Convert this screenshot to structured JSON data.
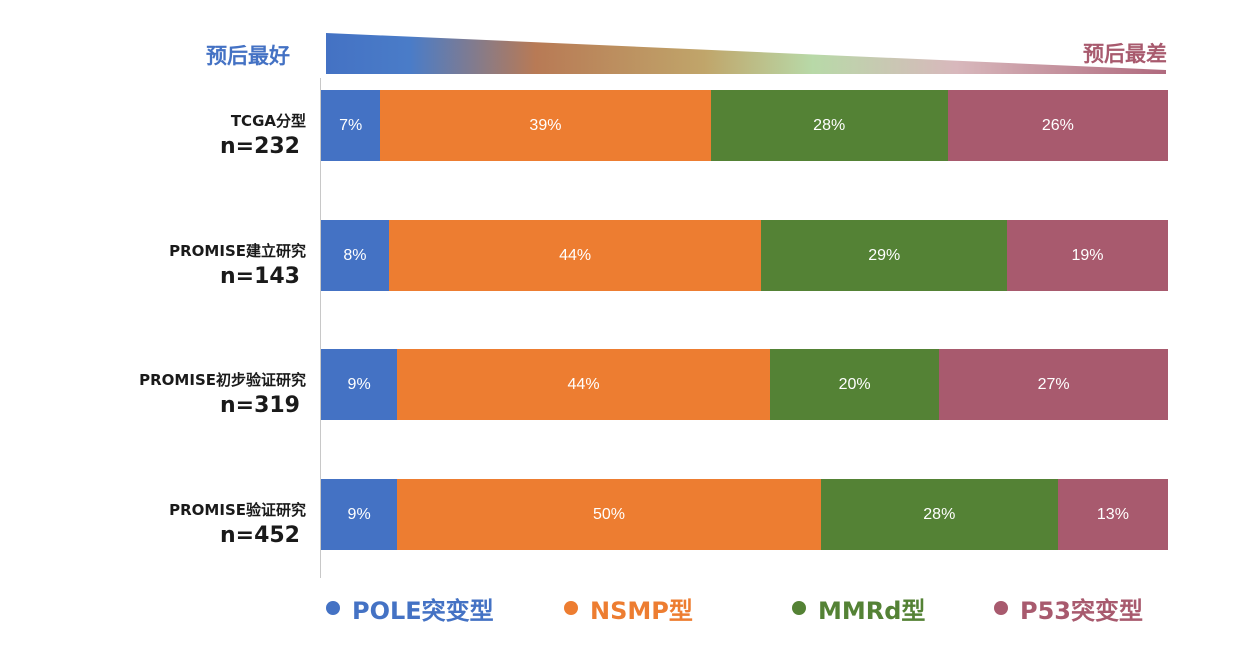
{
  "prognosis": {
    "best": "预后最好",
    "worst": "预后最差"
  },
  "colors": {
    "pole": "#4472c4",
    "nsmp": "#ed7d31",
    "mmrd": "#548235",
    "p53": "#a85a6e",
    "axis": "#c8c8c8"
  },
  "chart_data": {
    "type": "bar",
    "orientation": "horizontal",
    "stacked": true,
    "percent": true,
    "categories": [
      {
        "name": "TCGA分型",
        "n": "n=232"
      },
      {
        "name": "PROMISE建立研究",
        "n": "n=143"
      },
      {
        "name": "PROMISE初步验证研究",
        "n": "n=319"
      },
      {
        "name": "PROMISE验证研究",
        "n": "n=452"
      }
    ],
    "series": [
      {
        "name": "POLE突变型",
        "key": "pole",
        "values": [
          7,
          8,
          9,
          9
        ]
      },
      {
        "name": "NSMP型",
        "key": "nsmp",
        "values": [
          39,
          44,
          44,
          50
        ]
      },
      {
        "name": "MMRd型",
        "key": "mmrd",
        "values": [
          28,
          29,
          20,
          28
        ]
      },
      {
        "name": "P53突变型",
        "key": "p53",
        "values": [
          26,
          19,
          27,
          13
        ]
      }
    ],
    "value_suffix": "%",
    "xlim": [
      0,
      100
    ],
    "legend_position": "bottom"
  }
}
